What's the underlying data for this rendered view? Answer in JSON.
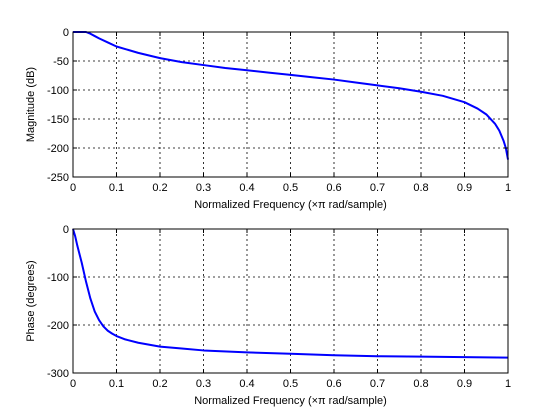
{
  "chart_data": [
    {
      "type": "line",
      "xlabel": "Normalized Frequency  (×π rad/sample)",
      "ylabel": "Magnitude (dB)",
      "xlim": [
        0,
        1
      ],
      "ylim": [
        -250,
        0
      ],
      "xticks": [
        0,
        0.1,
        0.2,
        0.3,
        0.4,
        0.5,
        0.6,
        0.7,
        0.8,
        0.9,
        1
      ],
      "xtick_labels": [
        "0",
        "0.1",
        "0.2",
        "0.3",
        "0.4",
        "0.5",
        "0.6",
        "0.7",
        "0.8",
        "0.9",
        "1"
      ],
      "yticks": [
        -250,
        -200,
        -150,
        -100,
        -50,
        0
      ],
      "ytick_labels": [
        "-250",
        "-200",
        "-150",
        "-100",
        "-50",
        "0"
      ],
      "grid": true,
      "series": [
        {
          "color": "#0000ff",
          "x": [
            0,
            0.01,
            0.02,
            0.03,
            0.04,
            0.05,
            0.06,
            0.08,
            0.1,
            0.15,
            0.2,
            0.25,
            0.3,
            0.35,
            0.4,
            0.45,
            0.5,
            0.55,
            0.6,
            0.65,
            0.7,
            0.75,
            0.8,
            0.85,
            0.9,
            0.93,
            0.95,
            0.97,
            0.98,
            0.99,
            0.995,
            1.0
          ],
          "y": [
            0,
            0,
            0,
            0,
            -3,
            -7,
            -11,
            -18,
            -25,
            -36,
            -45,
            -52,
            -57,
            -62,
            -66,
            -70,
            -74,
            -78,
            -82,
            -87,
            -92,
            -97,
            -103,
            -110,
            -121,
            -132,
            -142,
            -158,
            -170,
            -188,
            -200,
            -220
          ]
        }
      ]
    },
    {
      "type": "line",
      "xlabel": "Normalized Frequency  (×π rad/sample)",
      "ylabel": "Phase (degrees)",
      "xlim": [
        0,
        1
      ],
      "ylim": [
        -300,
        0
      ],
      "xticks": [
        0,
        0.1,
        0.2,
        0.3,
        0.4,
        0.5,
        0.6,
        0.7,
        0.8,
        0.9,
        1
      ],
      "xtick_labels": [
        "0",
        "0.1",
        "0.2",
        "0.3",
        "0.4",
        "0.5",
        "0.6",
        "0.7",
        "0.8",
        "0.9",
        "1"
      ],
      "yticks": [
        -300,
        -200,
        -100,
        0
      ],
      "ytick_labels": [
        "-300",
        "-200",
        "-100",
        "0"
      ],
      "grid": true,
      "series": [
        {
          "color": "#0000ff",
          "x": [
            0,
            0.005,
            0.01,
            0.02,
            0.03,
            0.04,
            0.05,
            0.06,
            0.07,
            0.08,
            0.09,
            0.1,
            0.12,
            0.15,
            0.2,
            0.25,
            0.3,
            0.4,
            0.5,
            0.6,
            0.7,
            0.8,
            0.9,
            1.0
          ],
          "y": [
            0,
            -15,
            -35,
            -70,
            -110,
            -145,
            -172,
            -190,
            -203,
            -212,
            -218,
            -223,
            -230,
            -237,
            -245,
            -249,
            -253,
            -257,
            -260,
            -263,
            -265,
            -266,
            -267,
            -268
          ]
        }
      ]
    }
  ]
}
